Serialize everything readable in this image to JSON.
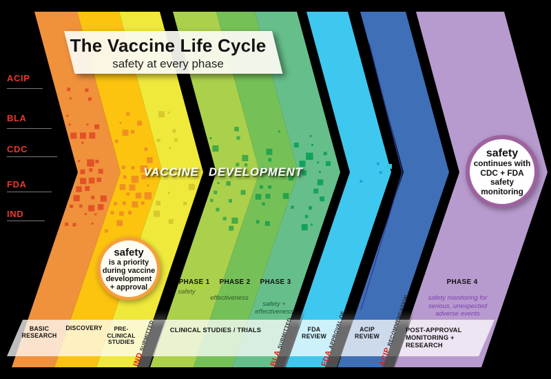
{
  "title": {
    "heading": "The Vaccine Life Cycle",
    "subheading": "safety at every phase"
  },
  "axis": {
    "items": [
      {
        "label": "ACIP"
      },
      {
        "label": "BLA"
      },
      {
        "label": "CDC"
      },
      {
        "label": "FDA"
      },
      {
        "label": "IND"
      }
    ]
  },
  "watermark": {
    "word1": "VACCINE",
    "word2": "DEVELOPMENT"
  },
  "callout_left": {
    "title": "safety",
    "body": "is a priority\nduring vaccine\ndevelopment\n+ approval",
    "border_color": "#f5a03c"
  },
  "callout_right": {
    "title": "safety",
    "body": "continues with\nCDC + FDA\nsafety\nmonitoring",
    "border_color": "#9d62a0"
  },
  "phases": [
    {
      "name": "PHASE 1",
      "desc": "safety"
    },
    {
      "name": "PHASE 2",
      "desc": "effectiveness"
    },
    {
      "name": "PHASE 3",
      "desc": "safety +\neffectiveness"
    },
    {
      "name": "PHASE 4",
      "desc": "safety monitoring for\nserious, unexpected\nadverse events"
    }
  ],
  "timeline": {
    "segments": [
      {
        "label": "BASIC\nRESEARCH"
      },
      {
        "label": "DISCOVERY"
      },
      {
        "label": "PRE-\nCLINICAL\nSTUDIES"
      },
      {
        "label": "CLINICAL STUDIES / TRIALS"
      },
      {
        "label": "FDA\nREVIEW"
      },
      {
        "label": "ACIP\nREVIEW"
      },
      {
        "label": "POST-APPROVAL\nMONITORING +\nRESEARCH"
      }
    ],
    "milestones": [
      {
        "acronym": "IND",
        "word": "SUBMITTED"
      },
      {
        "acronym": "BLA",
        "word": "SUBMITTED"
      },
      {
        "acronym": "FDA",
        "word": "APPROVAL OF"
      },
      {
        "acronym": "ACIP",
        "word": "RECOMMENDATION"
      }
    ]
  },
  "colors": {
    "background": "#000000",
    "accent_red": "#e8392d",
    "bands": [
      {
        "name": "orange",
        "fill": "#f0913c",
        "dot": "#e04f25"
      },
      {
        "name": "golden-yellow",
        "fill": "#fcc40e",
        "dot": "#ee8d26"
      },
      {
        "name": "yellow",
        "fill": "#efe93b",
        "dot": "#d5c72c"
      },
      {
        "name": "yellow-green",
        "fill": "#abd04c",
        "dot": "#3fa846"
      },
      {
        "name": "green",
        "fill": "#76c058",
        "dot": "#21a24b"
      },
      {
        "name": "teal-green",
        "fill": "#66bf8a",
        "dot": "#0f9f5d"
      },
      {
        "name": "cyan",
        "fill": "#3ec7ef",
        "dot": "#169bd5"
      },
      {
        "name": "blue",
        "fill": "#3e6fb7",
        "dot": null
      },
      {
        "name": "purple",
        "fill": "#b89bce",
        "dot": null
      }
    ]
  }
}
